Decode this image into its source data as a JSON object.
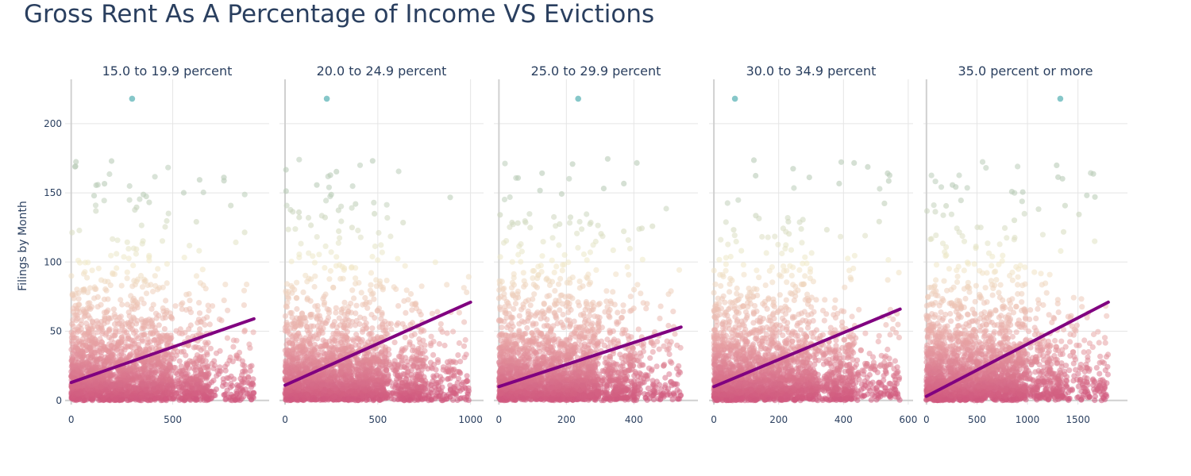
{
  "chart_data": {
    "type": "scatter",
    "title": "Gross Rent As A Percentage of Income VS Evictions",
    "ylabel": "Filings by Month",
    "ylim": [
      -3,
      232
    ],
    "yticks": [
      0,
      50,
      100,
      150,
      200
    ],
    "colors": {
      "low": "#d0587e",
      "mid": "#e8a6a6",
      "high": "#f1eac8",
      "top": "#b9ccb8",
      "outlier": "#7fc4c6",
      "trend": "#800080"
    },
    "panels": [
      {
        "title": "15.0 to 19.9 percent",
        "xlim": [
          -30,
          975
        ],
        "xticks": [
          0,
          500
        ],
        "x_max": 900,
        "outlier": [
          300,
          218
        ],
        "trend": [
          [
            0,
            13
          ],
          [
            900,
            59
          ]
        ]
      },
      {
        "title": "20.0 to 24.9 percent",
        "xlim": [
          -30,
          1070
        ],
        "xticks": [
          0,
          500,
          1000
        ],
        "x_max": 1000,
        "outlier": [
          225,
          218
        ],
        "trend": [
          [
            0,
            11
          ],
          [
            1000,
            71
          ]
        ]
      },
      {
        "title": "25.0 to 29.9 percent",
        "xlim": [
          -15,
          590
        ],
        "xticks": [
          0,
          200,
          400
        ],
        "x_max": 540,
        "outlier": [
          235,
          218
        ],
        "trend": [
          [
            0,
            10
          ],
          [
            540,
            53
          ]
        ]
      },
      {
        "title": "30.0 to 34.9 percent",
        "xlim": [
          -15,
          615
        ],
        "xticks": [
          0,
          200,
          400,
          600
        ],
        "x_max": 575,
        "outlier": [
          65,
          218
        ],
        "trend": [
          [
            0,
            10
          ],
          [
            575,
            66
          ]
        ]
      },
      {
        "title": "35.0 percent or more",
        "xlim": [
          -30,
          1990
        ],
        "xticks": [
          0,
          500,
          1000,
          1500
        ],
        "x_max": 1800,
        "outlier": [
          1325,
          218
        ],
        "trend": [
          [
            0,
            3
          ],
          [
            1800,
            71
          ]
        ]
      }
    ]
  }
}
